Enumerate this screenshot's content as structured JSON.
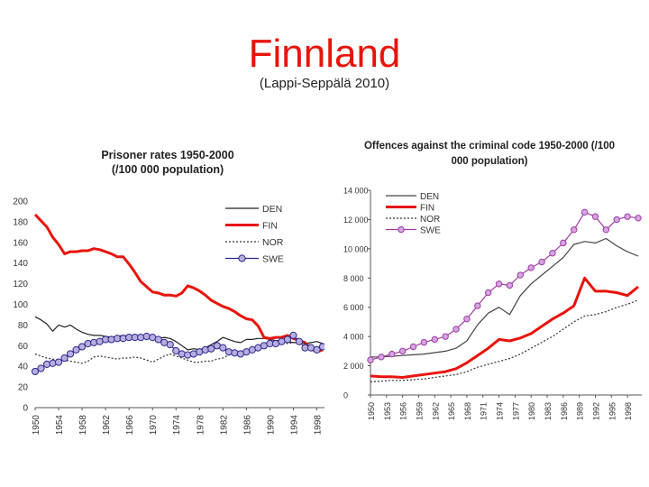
{
  "slide": {
    "title": "Finnland",
    "subtitle": "(Lappi-Seppälä 2010)"
  },
  "chart_data": [
    {
      "type": "line",
      "title_lines": [
        "Prisoner rates 1950-2000",
        "(/100 000 population)"
      ],
      "xlabel": "",
      "ylabel": "",
      "ylim": [
        0,
        200
      ],
      "yticks": [
        0,
        20,
        40,
        60,
        80,
        100,
        120,
        140,
        160,
        180,
        200
      ],
      "ytick_labels": [
        "0",
        "20",
        "40",
        "60",
        "80",
        "100",
        "120",
        "140",
        "160",
        "180",
        "200"
      ],
      "xlim": [
        1950,
        1999
      ],
      "xticks": [
        1950,
        1954,
        1958,
        1962,
        1966,
        1970,
        1974,
        1978,
        1982,
        1986,
        1990,
        1994,
        1998
      ],
      "xtick_labels": [
        "1950",
        "1954",
        "1958",
        "1962",
        "1966",
        "1970",
        "1974",
        "1978",
        "1982",
        "1986",
        "1990",
        "1994",
        "1998"
      ],
      "grid": false,
      "legend_position": "top-right",
      "series": [
        {
          "name": "DEN",
          "color": "#222222",
          "style": "solid",
          "marker": false,
          "x": [
            1950,
            1951,
            1952,
            1953,
            1954,
            1955,
            1956,
            1957,
            1958,
            1959,
            1960,
            1961,
            1962,
            1963,
            1964,
            1965,
            1966,
            1967,
            1968,
            1969,
            1970,
            1971,
            1972,
            1973,
            1974,
            1975,
            1976,
            1977,
            1978,
            1979,
            1980,
            1981,
            1982,
            1983,
            1984,
            1985,
            1986,
            1987,
            1988,
            1989,
            1990,
            1991,
            1992,
            1993,
            1994,
            1995,
            1996,
            1997,
            1998,
            1999
          ],
          "values": [
            88,
            85,
            81,
            74,
            80,
            78,
            80,
            76,
            73,
            71,
            70,
            70,
            69,
            68,
            69,
            70,
            69,
            68,
            68,
            67,
            68,
            67,
            68,
            67,
            64,
            60,
            56,
            57,
            56,
            58,
            61,
            64,
            68,
            66,
            64,
            63,
            66,
            66,
            67,
            67,
            66,
            65,
            65,
            64,
            63,
            63,
            62,
            63,
            64,
            62
          ]
        },
        {
          "name": "FIN",
          "color": "#e8140c",
          "style": "solid",
          "marker": false,
          "x": [
            1950,
            1951,
            1952,
            1953,
            1954,
            1955,
            1956,
            1957,
            1958,
            1959,
            1960,
            1961,
            1962,
            1963,
            1964,
            1965,
            1966,
            1967,
            1968,
            1969,
            1970,
            1971,
            1972,
            1973,
            1974,
            1975,
            1976,
            1977,
            1978,
            1979,
            1980,
            1981,
            1982,
            1983,
            1984,
            1985,
            1986,
            1987,
            1988,
            1989,
            1990,
            1991,
            1992,
            1993,
            1994,
            1995,
            1996,
            1997,
            1998,
            1999
          ],
          "values": [
            187,
            181,
            175,
            165,
            158,
            149,
            151,
            151,
            152,
            152,
            154,
            153,
            151,
            149,
            146,
            146,
            139,
            131,
            122,
            117,
            112,
            111,
            109,
            109,
            108,
            111,
            118,
            116,
            113,
            109,
            104,
            101,
            98,
            96,
            93,
            89,
            86,
            85,
            79,
            68,
            67,
            68,
            68,
            70,
            67,
            65,
            63,
            57,
            54,
            56
          ]
        },
        {
          "name": "NOR",
          "color": "#333333",
          "style": "dotted",
          "marker": false,
          "x": [
            1950,
            1951,
            1952,
            1953,
            1954,
            1955,
            1956,
            1957,
            1958,
            1959,
            1960,
            1961,
            1962,
            1963,
            1964,
            1965,
            1966,
            1967,
            1968,
            1969,
            1970,
            1971,
            1972,
            1973,
            1974,
            1975,
            1976,
            1977,
            1978,
            1979,
            1980,
            1981,
            1982,
            1983,
            1984,
            1985,
            1986,
            1987,
            1988,
            1989,
            1990,
            1991,
            1992,
            1993,
            1994,
            1995,
            1996,
            1997,
            1998,
            1999
          ],
          "values": [
            52,
            50,
            48,
            47,
            46,
            46,
            45,
            44,
            43,
            45,
            49,
            50,
            49,
            48,
            47,
            48,
            48,
            49,
            48,
            46,
            44,
            47,
            50,
            52,
            50,
            48,
            46,
            44,
            44,
            45,
            45,
            47,
            48,
            51,
            52,
            50,
            53,
            55,
            57,
            58,
            61,
            63,
            64,
            62,
            63,
            64,
            62,
            59,
            57,
            59
          ]
        },
        {
          "name": "SWE",
          "color": "#2c2a8c",
          "markerFill": "#b7aee0",
          "style": "solid",
          "marker": true,
          "x": [
            1950,
            1951,
            1952,
            1953,
            1954,
            1955,
            1956,
            1957,
            1958,
            1959,
            1960,
            1961,
            1962,
            1963,
            1964,
            1965,
            1966,
            1967,
            1968,
            1969,
            1970,
            1971,
            1972,
            1973,
            1974,
            1975,
            1976,
            1977,
            1978,
            1979,
            1980,
            1981,
            1982,
            1983,
            1984,
            1985,
            1986,
            1987,
            1988,
            1989,
            1990,
            1991,
            1992,
            1993,
            1994,
            1995,
            1996,
            1997,
            1998,
            1999
          ],
          "values": [
            35,
            38,
            42,
            43,
            44,
            48,
            52,
            56,
            59,
            62,
            63,
            64,
            66,
            66,
            67,
            67,
            68,
            68,
            68,
            69,
            68,
            66,
            63,
            61,
            55,
            52,
            51,
            52,
            54,
            56,
            57,
            60,
            58,
            54,
            53,
            52,
            54,
            56,
            58,
            60,
            62,
            62,
            64,
            66,
            70,
            64,
            58,
            58,
            56,
            59
          ]
        }
      ]
    },
    {
      "type": "line",
      "title_lines": [
        "Offences against the criminal code 1950-2000 (/100",
        "000 population)"
      ],
      "xlabel": "",
      "ylabel": "",
      "ylim": [
        0,
        14000
      ],
      "yticks": [
        0,
        2000,
        4000,
        6000,
        8000,
        10000,
        12000,
        14000
      ],
      "ytick_labels": [
        "0",
        "2 000",
        "4 000",
        "6 000",
        "8 000",
        "10 000",
        "12 000",
        "14 000"
      ],
      "xlim": [
        1950,
        2000
      ],
      "xticks": [
        1950,
        1953,
        1956,
        1959,
        1962,
        1965,
        1968,
        1971,
        1974,
        1977,
        1980,
        1983,
        1986,
        1989,
        1992,
        1995,
        1998
      ],
      "xtick_labels": [
        "1950",
        "1953",
        "1956",
        "1959",
        "1962",
        "1965",
        "1968",
        "1971",
        "1974",
        "1977",
        "1980",
        "1983",
        "1986",
        "1989",
        "1992",
        "1995",
        "1998"
      ],
      "grid": false,
      "legend_position": "top-left",
      "series": [
        {
          "name": "DEN",
          "color": "#444444",
          "style": "solid",
          "marker": false,
          "x": [
            1950,
            1952,
            1954,
            1956,
            1958,
            1960,
            1962,
            1964,
            1966,
            1968,
            1970,
            1972,
            1974,
            1976,
            1978,
            1980,
            1982,
            1984,
            1986,
            1988,
            1990,
            1992,
            1994,
            1996,
            1998,
            2000
          ],
          "values": [
            2600,
            2600,
            2650,
            2700,
            2750,
            2800,
            2900,
            3000,
            3200,
            3700,
            4800,
            5600,
            6000,
            5500,
            6800,
            7600,
            8200,
            8800,
            9400,
            10300,
            10500,
            10400,
            10700,
            10200,
            9800,
            9500
          ]
        },
        {
          "name": "FIN",
          "color": "#e8140c",
          "style": "solid",
          "marker": false,
          "x": [
            1950,
            1952,
            1954,
            1956,
            1958,
            1960,
            1962,
            1964,
            1966,
            1968,
            1970,
            1972,
            1974,
            1976,
            1978,
            1980,
            1982,
            1984,
            1986,
            1988,
            1990,
            1992,
            1994,
            1996,
            1998,
            2000
          ],
          "values": [
            1300,
            1250,
            1250,
            1200,
            1300,
            1400,
            1500,
            1600,
            1800,
            2200,
            2700,
            3200,
            3800,
            3700,
            3900,
            4200,
            4700,
            5200,
            5600,
            6100,
            8000,
            7100,
            7100,
            7000,
            6800,
            7400
          ]
        },
        {
          "name": "NOR",
          "color": "#333333",
          "style": "dotted",
          "marker": false,
          "x": [
            1950,
            1952,
            1954,
            1956,
            1958,
            1960,
            1962,
            1964,
            1966,
            1968,
            1970,
            1972,
            1974,
            1976,
            1978,
            1980,
            1982,
            1984,
            1986,
            1988,
            1990,
            1992,
            1994,
            1996,
            1998,
            2000
          ],
          "values": [
            900,
            950,
            1000,
            1000,
            1050,
            1100,
            1200,
            1300,
            1400,
            1600,
            1900,
            2100,
            2300,
            2500,
            2800,
            3200,
            3600,
            4000,
            4500,
            5000,
            5400,
            5500,
            5700,
            6000,
            6200,
            6500
          ]
        },
        {
          "name": "SWE",
          "color": "#a13aa3",
          "markerFill": "#d2a6e0",
          "style": "solid",
          "marker": true,
          "x": [
            1950,
            1952,
            1954,
            1956,
            1958,
            1960,
            1962,
            1964,
            1966,
            1968,
            1970,
            1972,
            1974,
            1976,
            1978,
            1980,
            1982,
            1984,
            1986,
            1988,
            1990,
            1992,
            1994,
            1996,
            1998,
            2000
          ],
          "values": [
            2400,
            2600,
            2800,
            3000,
            3300,
            3600,
            3800,
            4000,
            4500,
            5200,
            6100,
            7000,
            7600,
            7500,
            8200,
            8700,
            9100,
            9700,
            10400,
            11300,
            12500,
            12200,
            11300,
            12000,
            12200,
            12100
          ]
        }
      ]
    }
  ]
}
